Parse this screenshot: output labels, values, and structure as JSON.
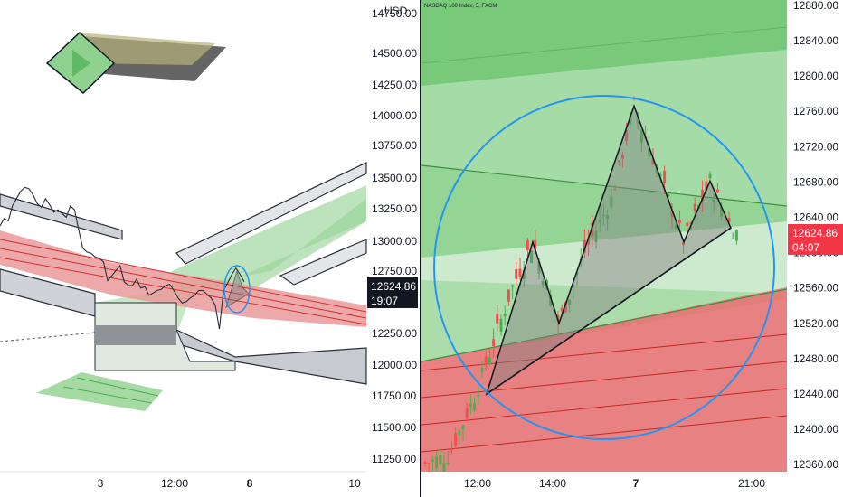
{
  "chart_data": [
    {
      "type": "line",
      "panel": "left",
      "currency": "USD",
      "y_ticks": [
        "14750.00",
        "14500.00",
        "14250.00",
        "14000.00",
        "13750.00",
        "13500.00",
        "13250.00",
        "13000.00",
        "12750.00",
        "12250.00",
        "12000.00",
        "11750.00",
        "11500.00",
        "11250.00"
      ],
      "x_ticks": [
        "3",
        "12:00",
        "8",
        "10"
      ],
      "x_ticks_bold": [
        "8"
      ],
      "price_tag": {
        "price": "12624.86",
        "countdown": "19:07",
        "color": "#131722"
      },
      "series": [
        {
          "values": [
            13080,
            13140,
            13120,
            13240,
            13300,
            13360,
            13390,
            13380,
            13330,
            13260,
            13230,
            13300,
            13250,
            13190,
            13210,
            13180,
            13150,
            13240,
            13210,
            13050,
            12900,
            12870,
            12860,
            12830,
            12820,
            12790,
            12640,
            12680,
            12720,
            12760,
            12630,
            12600,
            12600,
            12650,
            12580,
            12590,
            12520,
            12540,
            12560,
            12570,
            12600,
            12610,
            12560,
            12500,
            12460,
            12470,
            12500,
            12520,
            12560,
            12560,
            12530,
            12500,
            12440,
            12250,
            12560,
            12620,
            12690,
            12740,
            12690,
            12630
          ]
        }
      ],
      "y_range": [
        11100,
        14900
      ]
    },
    {
      "type": "line",
      "panel": "right",
      "header": "NASDAQ 100 Index, 5, FXCM",
      "y_ticks": [
        "12880.00",
        "12840.00",
        "12800.00",
        "12760.00",
        "12720.00",
        "12680.00",
        "12640.00",
        "12600.00",
        "12560.00",
        "12520.00",
        "12480.00",
        "12440.00",
        "12400.00",
        "12360.00"
      ],
      "x_ticks": [
        "12:00",
        "14:00",
        "7",
        "21:00"
      ],
      "x_ticks_bold": [
        "7"
      ],
      "price_tag": {
        "price": "12624.86",
        "countdown": "04:07",
        "color": "#f23645"
      },
      "pattern_points": [
        {
          "x": 0,
          "y": 12440
        },
        {
          "x": 1,
          "y": 12612
        },
        {
          "x": 2,
          "y": 12520
        },
        {
          "x": 3,
          "y": 12766
        },
        {
          "x": 4,
          "y": 12612
        },
        {
          "x": 5,
          "y": 12681
        },
        {
          "x": 6,
          "y": 12628
        }
      ],
      "y_range": [
        12352,
        12886
      ]
    }
  ],
  "colors": {
    "green_zone": "#4caf50",
    "red_zone": "#e53935",
    "circle": "#2196f3",
    "pattern_fill": "#808080",
    "bull_candle": "#4caf50",
    "bear_candle": "#ef5350"
  },
  "icons": {
    "logo": "forward-arrow-diamond-logo"
  }
}
